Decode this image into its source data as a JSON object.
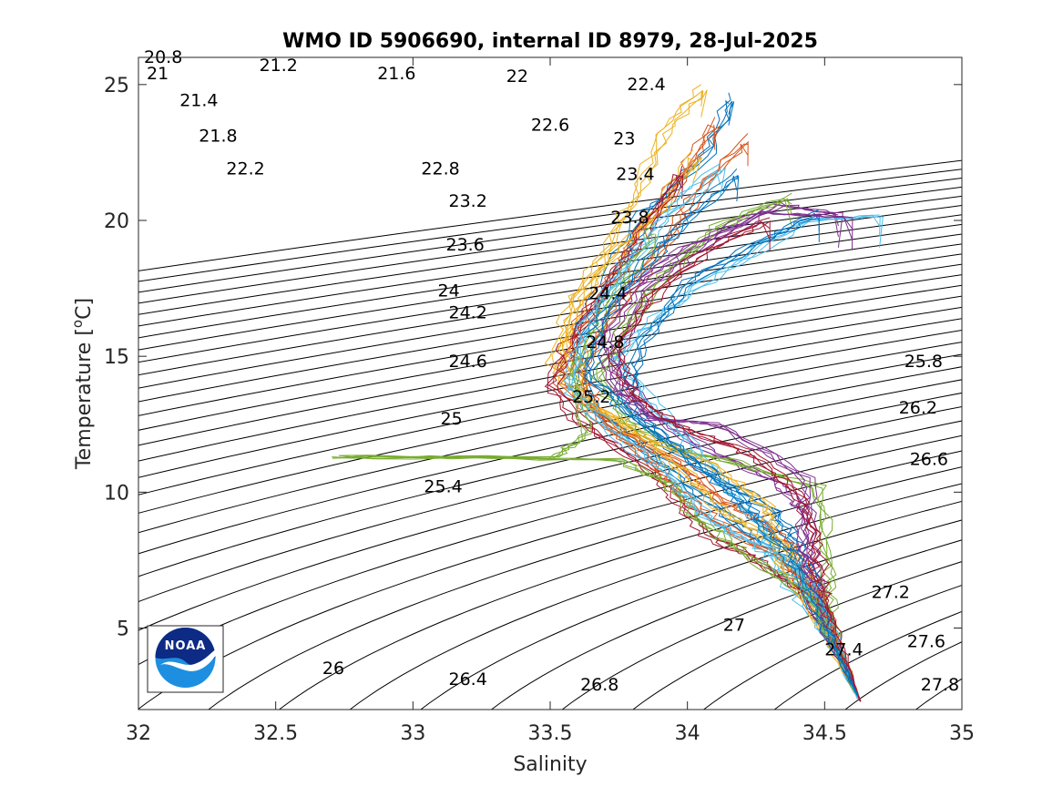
{
  "chart_data": {
    "type": "line",
    "title": "WMO ID 5906690, internal ID 8979, 28-Jul-2025",
    "xlabel": "Salinity",
    "ylabel_main": "Temperature [",
    "ylabel_sup": "o",
    "ylabel_end": "C]",
    "xlim": [
      32,
      35
    ],
    "ylim": [
      2,
      26
    ],
    "xticks": [
      "32",
      "32.5",
      "33",
      "33.5",
      "34",
      "34.5",
      "35"
    ],
    "yticks": [
      "5",
      "10",
      "15",
      "20",
      "25"
    ],
    "xtick_values": [
      32,
      32.5,
      33,
      33.5,
      34,
      34.5,
      35
    ],
    "ytick_values": [
      5,
      10,
      15,
      20,
      25
    ],
    "grid": false,
    "density_contours": {
      "levels_start": 20.8,
      "levels_end": 28.0,
      "levels_step": 0.2,
      "labels": [
        {
          "text": "20.8",
          "s": 32.02,
          "t": 25.8
        },
        {
          "text": "21",
          "s": 32.03,
          "t": 25.2
        },
        {
          "text": "21.2",
          "s": 32.44,
          "t": 25.5
        },
        {
          "text": "21.4",
          "s": 32.15,
          "t": 24.2
        },
        {
          "text": "21.6",
          "s": 32.87,
          "t": 25.2
        },
        {
          "text": "21.8",
          "s": 32.22,
          "t": 22.9
        },
        {
          "text": "22",
          "s": 33.34,
          "t": 25.1
        },
        {
          "text": "22.2",
          "s": 32.32,
          "t": 21.7
        },
        {
          "text": "22.4",
          "s": 33.78,
          "t": 24.8
        },
        {
          "text": "22.6",
          "s": 33.43,
          "t": 23.3
        },
        {
          "text": "22.8",
          "s": 33.03,
          "t": 21.7
        },
        {
          "text": "23",
          "s": 33.73,
          "t": 22.8
        },
        {
          "text": "23.2",
          "s": 33.13,
          "t": 20.5
        },
        {
          "text": "23.4",
          "s": 33.74,
          "t": 21.5
        },
        {
          "text": "23.6",
          "s": 33.12,
          "t": 18.9
        },
        {
          "text": "23.8",
          "s": 33.72,
          "t": 19.9
        },
        {
          "text": "24",
          "s": 33.09,
          "t": 17.2
        },
        {
          "text": "24.2",
          "s": 33.13,
          "t": 16.4
        },
        {
          "text": "24.4",
          "s": 33.64,
          "t": 17.1
        },
        {
          "text": "24.6",
          "s": 33.13,
          "t": 14.6
        },
        {
          "text": "24.8",
          "s": 33.63,
          "t": 15.3
        },
        {
          "text": "25",
          "s": 33.1,
          "t": 12.5
        },
        {
          "text": "25.2",
          "s": 33.58,
          "t": 13.3
        },
        {
          "text": "25.4",
          "s": 33.04,
          "t": 10.0
        },
        {
          "text": "25.8",
          "s": 34.79,
          "t": 14.6
        },
        {
          "text": "26",
          "s": 32.67,
          "t": 3.3
        },
        {
          "text": "26.2",
          "s": 34.77,
          "t": 12.9
        },
        {
          "text": "26.4",
          "s": 33.13,
          "t": 2.9
        },
        {
          "text": "26.6",
          "s": 34.81,
          "t": 11.0
        },
        {
          "text": "26.8",
          "s": 33.61,
          "t": 2.7
        },
        {
          "text": "27",
          "s": 34.13,
          "t": 4.9
        },
        {
          "text": "27.2",
          "s": 34.67,
          "t": 6.1
        },
        {
          "text": "27.4",
          "s": 34.5,
          "t": 4.0
        },
        {
          "text": "27.6",
          "s": 34.8,
          "t": 4.3
        },
        {
          "text": "27.8",
          "s": 34.85,
          "t": 2.7
        }
      ]
    },
    "series": [
      {
        "values": [
          [
            34.63,
            2.3
          ],
          [
            34.55,
            4.0
          ],
          [
            34.45,
            5.8
          ],
          [
            34.38,
            7.3
          ],
          [
            34.2,
            8.6
          ],
          [
            34.02,
            9.9
          ],
          [
            33.88,
            11.3
          ],
          [
            33.64,
            13.0
          ],
          [
            33.57,
            15.1
          ],
          [
            33.68,
            17.6
          ],
          [
            33.83,
            20.3
          ],
          [
            34.05,
            22.4
          ],
          [
            34.15,
            24.7
          ]
        ]
      },
      {
        "values": [
          [
            34.63,
            2.3
          ],
          [
            34.54,
            4.2
          ],
          [
            34.46,
            6.0
          ],
          [
            34.4,
            7.6
          ],
          [
            34.28,
            8.7
          ],
          [
            34.1,
            9.8
          ],
          [
            33.95,
            11.1
          ],
          [
            33.7,
            12.4
          ],
          [
            33.52,
            14.0
          ],
          [
            33.6,
            16.3
          ],
          [
            33.78,
            19.0
          ],
          [
            33.95,
            21.5
          ],
          [
            34.1,
            23.8
          ]
        ]
      },
      {
        "values": [
          [
            34.62,
            2.4
          ],
          [
            34.52,
            4.5
          ],
          [
            34.44,
            6.4
          ],
          [
            34.35,
            7.9
          ],
          [
            34.15,
            9.0
          ],
          [
            33.98,
            10.6
          ],
          [
            33.82,
            12.0
          ],
          [
            33.58,
            13.6
          ],
          [
            33.5,
            14.7
          ],
          [
            33.56,
            16.9
          ],
          [
            33.72,
            18.8
          ],
          [
            33.88,
            20.4
          ],
          [
            34.02,
            22.6
          ]
        ]
      },
      {
        "values": [
          [
            34.63,
            2.3
          ],
          [
            34.56,
            3.9
          ],
          [
            34.48,
            5.6
          ],
          [
            34.45,
            7.2
          ],
          [
            34.42,
            9.2
          ],
          [
            34.3,
            10.4
          ],
          [
            34.05,
            11.6
          ],
          [
            33.84,
            12.9
          ],
          [
            33.7,
            14.8
          ],
          [
            33.82,
            17.4
          ],
          [
            34.05,
            19.1
          ],
          [
            34.32,
            20.6
          ],
          [
            34.55,
            20.2
          ]
        ]
      },
      {
        "values": [
          [
            34.62,
            2.5
          ],
          [
            34.55,
            4.1
          ],
          [
            34.5,
            5.8
          ],
          [
            34.5,
            7.5
          ],
          [
            34.45,
            10.2
          ],
          [
            34.15,
            11.1
          ],
          [
            33.92,
            11.6
          ],
          [
            33.76,
            12.6
          ],
          [
            33.66,
            14.2
          ],
          [
            33.76,
            16.1
          ],
          [
            33.9,
            18.0
          ],
          [
            34.1,
            19.8
          ],
          [
            34.38,
            21.0
          ]
        ]
      },
      {
        "values": [
          [
            34.61,
            2.6
          ],
          [
            34.52,
            4.3
          ],
          [
            34.4,
            6.0
          ],
          [
            34.3,
            7.3
          ],
          [
            34.25,
            8.8
          ],
          [
            34.1,
            10.4
          ],
          [
            33.98,
            12.0
          ],
          [
            33.84,
            13.4
          ],
          [
            33.72,
            14.9
          ],
          [
            33.9,
            16.7
          ],
          [
            34.12,
            18.2
          ],
          [
            34.42,
            20.0
          ],
          [
            34.7,
            20.2
          ]
        ]
      },
      {
        "values": [
          [
            34.63,
            2.3
          ],
          [
            34.53,
            4.4
          ],
          [
            34.42,
            6.2
          ],
          [
            34.24,
            7.5
          ],
          [
            34.06,
            8.4
          ],
          [
            33.96,
            9.6
          ],
          [
            33.85,
            10.8
          ],
          [
            33.6,
            12.5
          ],
          [
            33.49,
            13.9
          ],
          [
            33.55,
            15.4
          ],
          [
            33.66,
            17.2
          ],
          [
            33.82,
            19.5
          ],
          [
            33.98,
            22.0
          ]
        ]
      },
      {
        "values": [
          [
            34.62,
            2.4
          ],
          [
            34.54,
            4.0
          ],
          [
            34.47,
            5.7
          ],
          [
            34.42,
            7.1
          ],
          [
            34.36,
            8.3
          ],
          [
            34.3,
            9.3
          ],
          [
            34.1,
            10.5
          ],
          [
            33.9,
            11.8
          ],
          [
            33.76,
            13.4
          ],
          [
            33.82,
            15.6
          ],
          [
            34.0,
            17.8
          ],
          [
            34.26,
            19.3
          ],
          [
            34.48,
            20.4
          ]
        ]
      },
      {
        "values": [
          [
            34.63,
            2.3
          ],
          [
            34.55,
            4.2
          ],
          [
            34.46,
            6.1
          ],
          [
            34.32,
            7.6
          ],
          [
            34.1,
            8.8
          ],
          [
            33.94,
            10.1
          ],
          [
            33.82,
            11.4
          ],
          [
            33.66,
            12.7
          ],
          [
            33.6,
            14.5
          ],
          [
            33.7,
            16.5
          ],
          [
            33.86,
            18.6
          ],
          [
            34.0,
            20.8
          ],
          [
            34.22,
            23.2
          ]
        ]
      },
      {
        "values": [
          [
            34.62,
            2.5
          ],
          [
            34.5,
            4.6
          ],
          [
            34.38,
            6.6
          ],
          [
            34.3,
            8.1
          ],
          [
            34.28,
            9.5
          ],
          [
            34.06,
            11.0
          ],
          [
            33.8,
            12.2
          ],
          [
            33.62,
            13.3
          ],
          [
            33.54,
            15.6
          ],
          [
            33.64,
            18.1
          ],
          [
            33.78,
            20.6
          ],
          [
            33.9,
            23.2
          ],
          [
            34.05,
            25.0
          ]
        ]
      },
      {
        "values": [
          [
            34.63,
            2.3
          ],
          [
            34.54,
            4.0
          ],
          [
            34.44,
            6.0
          ],
          [
            34.4,
            8.2
          ],
          [
            34.42,
            10.5
          ],
          [
            34.1,
            12.5
          ],
          [
            33.85,
            12.7
          ],
          [
            33.72,
            13.8
          ],
          [
            33.68,
            15.8
          ],
          [
            33.78,
            17.5
          ],
          [
            33.98,
            19.0
          ],
          [
            34.24,
            20.3
          ],
          [
            34.6,
            20.1
          ]
        ]
      },
      {
        "values": [
          [
            34.61,
            2.6
          ],
          [
            34.53,
            4.3
          ],
          [
            34.43,
            6.2
          ],
          [
            34.18,
            7.8
          ],
          [
            34.02,
            9.0
          ],
          [
            33.92,
            10.3
          ],
          [
            33.72,
            11.2
          ],
          [
            32.7,
            11.3
          ],
          [
            33.5,
            11.3
          ],
          [
            33.62,
            12.2
          ],
          [
            33.56,
            14.3
          ],
          [
            33.7,
            17.0
          ],
          [
            33.88,
            19.9
          ]
        ]
      },
      {
        "values": [
          [
            34.62,
            2.4
          ],
          [
            34.55,
            4.1
          ],
          [
            34.47,
            5.9
          ],
          [
            34.36,
            7.4
          ],
          [
            34.2,
            8.2
          ],
          [
            34.05,
            9.1
          ],
          [
            33.92,
            10.6
          ],
          [
            33.7,
            12.3
          ],
          [
            33.55,
            13.8
          ],
          [
            33.6,
            16.0
          ],
          [
            33.76,
            18.4
          ],
          [
            33.94,
            20.5
          ],
          [
            34.12,
            22.1
          ]
        ]
      },
      {
        "values": [
          [
            34.63,
            2.3
          ],
          [
            34.56,
            4.0
          ],
          [
            34.5,
            5.5
          ],
          [
            34.46,
            6.8
          ],
          [
            34.45,
            8.5
          ],
          [
            34.38,
            10.0
          ],
          [
            34.2,
            11.5
          ],
          [
            33.95,
            12.4
          ],
          [
            33.78,
            13.6
          ],
          [
            33.72,
            15.2
          ],
          [
            33.85,
            17.1
          ],
          [
            34.05,
            18.9
          ],
          [
            34.3,
            20.1
          ]
        ]
      },
      {
        "values": [
          [
            34.62,
            2.5
          ],
          [
            34.52,
            4.4
          ],
          [
            34.42,
            6.3
          ],
          [
            34.34,
            7.8
          ],
          [
            34.24,
            9.0
          ],
          [
            34.12,
            10.2
          ],
          [
            33.96,
            11.5
          ],
          [
            33.78,
            12.9
          ],
          [
            33.62,
            14.2
          ],
          [
            33.66,
            16.2
          ],
          [
            33.82,
            18.3
          ],
          [
            34.0,
            20.2
          ],
          [
            34.18,
            21.9
          ]
        ]
      }
    ]
  },
  "colors": {
    "series": [
      "#0072BD",
      "#D95319",
      "#EDB120",
      "#7E2F8E",
      "#77AC30",
      "#4DBEEE",
      "#A2142F"
    ],
    "contour": "#000000",
    "axis": "#262626"
  },
  "logo": {
    "text": "NOAA"
  }
}
